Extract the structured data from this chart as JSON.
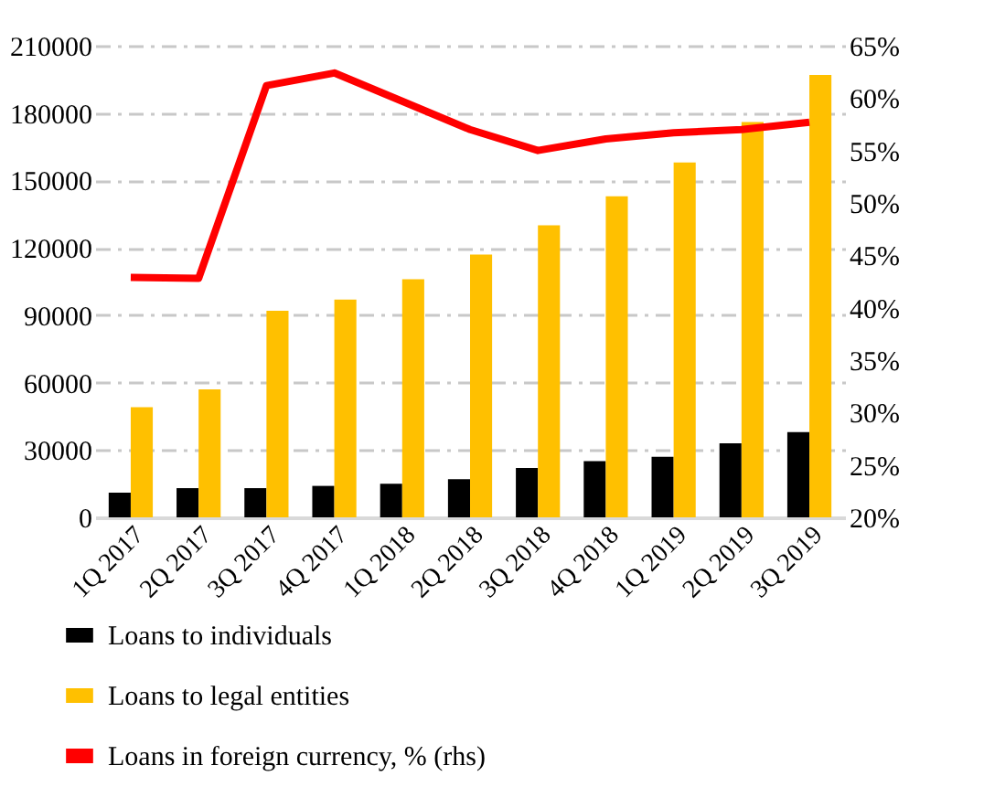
{
  "chart_data": {
    "type": "bar",
    "categories": [
      "1Q 2017",
      "2Q 2017",
      "3Q 2017",
      "4Q 2017",
      "1Q 2018",
      "2Q 2018",
      "3Q 2018",
      "4Q 2018",
      "1Q 2019",
      "2Q 2019",
      "3Q 2019"
    ],
    "series": [
      {
        "name": "Loans to individuals",
        "color": "#000000",
        "values": [
          11000,
          13000,
          13000,
          14000,
          15000,
          17000,
          22000,
          25000,
          27000,
          33000,
          38000
        ]
      },
      {
        "name": "Loans to legal entities",
        "color": "#ffc000",
        "values": [
          49000,
          57000,
          92000,
          97000,
          106000,
          117000,
          130000,
          143000,
          158000,
          176000,
          197000
        ]
      },
      {
        "name": "Loans in foreign currency, % (rhs)",
        "color": "#ff0000",
        "type": "line",
        "axis": "y2",
        "values": [
          42.9,
          42.8,
          61.2,
          62.4,
          59.7,
          57.0,
          55.0,
          56.1,
          56.7,
          57.0,
          57.7
        ]
      }
    ],
    "ylim": [
      0,
      210000
    ],
    "yticks": [
      0,
      30000,
      60000,
      90000,
      120000,
      150000,
      180000,
      210000
    ],
    "y2lim": [
      20,
      65
    ],
    "y2ticks": [
      {
        "value": 20,
        "label": "20%"
      },
      {
        "value": 25,
        "label": "25%"
      },
      {
        "value": 30,
        "label": "30%"
      },
      {
        "value": 35,
        "label": "35%"
      },
      {
        "value": 40,
        "label": "40%"
      },
      {
        "value": 45,
        "label": "45%"
      },
      {
        "value": 50,
        "label": "50%"
      },
      {
        "value": 55,
        "label": "55%"
      },
      {
        "value": 60,
        "label": "60%"
      },
      {
        "value": 65,
        "label": "65%"
      }
    ],
    "grid": "y",
    "legend": "bottom"
  }
}
